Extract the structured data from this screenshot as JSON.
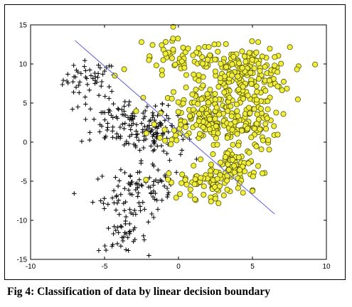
{
  "caption": "Fig 4: Classification of data by linear decision boundary",
  "colors": {
    "background": "#ffffff",
    "axes": "#000000",
    "class1_marker": "#111111",
    "class2_fill": "#f0ee3c",
    "class2_edge": "#555500",
    "boundary": "#6b6bdc"
  },
  "chart_data": {
    "type": "scatter",
    "title": "",
    "xlabel": "",
    "ylabel": "",
    "xlim": [
      -10,
      10
    ],
    "ylim": [
      -15,
      15
    ],
    "xticks": [
      -10,
      -5,
      0,
      5,
      10
    ],
    "yticks": [
      -15,
      -10,
      -5,
      0,
      5,
      10,
      15
    ],
    "xtick_labels": [
      "-10",
      "-5",
      "0",
      "5",
      "10"
    ],
    "ytick_labels": [
      "-15",
      "-10",
      "-5",
      "0",
      "5",
      "10",
      "15"
    ],
    "grid": false,
    "legend": "none",
    "series": [
      {
        "marker": "plus",
        "clusters": [
          {
            "cx": -6.0,
            "cy": 8.0,
            "sx": 0.9,
            "sy": 1.2,
            "n": 45
          },
          {
            "cx": -3.5,
            "cy": 2.5,
            "sx": 1.6,
            "sy": 1.6,
            "n": 110
          },
          {
            "cx": -1.5,
            "cy": 1.0,
            "sx": 1.0,
            "sy": 1.6,
            "n": 70
          },
          {
            "cx": -3.0,
            "cy": -7.0,
            "sx": 1.4,
            "sy": 1.8,
            "n": 80
          },
          {
            "cx": -3.8,
            "cy": -12.2,
            "sx": 0.8,
            "sy": 0.9,
            "n": 30
          },
          {
            "cx": -1.5,
            "cy": -5.0,
            "sx": 0.8,
            "sy": 1.4,
            "n": 25
          }
        ],
        "points": [
          [
            -6.9,
            9.2
          ],
          [
            -5.3,
            9.5
          ],
          [
            -4.4,
            8.6
          ],
          [
            -0.8,
            3.4
          ],
          [
            -3.9,
            -13.3
          ]
        ]
      },
      {
        "marker": "circle",
        "clusters": [
          {
            "cx": 0.3,
            "cy": 10.5,
            "sx": 1.5,
            "sy": 1.3,
            "n": 60
          },
          {
            "cx": 4.5,
            "cy": 8.5,
            "sx": 1.5,
            "sy": 1.8,
            "n": 200
          },
          {
            "cx": 1.8,
            "cy": 3.5,
            "sx": 1.6,
            "sy": 2.0,
            "n": 150
          },
          {
            "cx": 4.2,
            "cy": 2.0,
            "sx": 1.3,
            "sy": 1.6,
            "n": 90
          },
          {
            "cx": 4.0,
            "cy": -3.0,
            "sx": 0.8,
            "sy": 1.0,
            "n": 60
          },
          {
            "cx": 2.0,
            "cy": -5.2,
            "sx": 1.4,
            "sy": 1.0,
            "n": 80
          }
        ],
        "points": [
          [
            -2.5,
            12.8
          ],
          [
            -2.0,
            10.5
          ],
          [
            6.5,
            9.8
          ],
          [
            -4.3,
            8.5
          ],
          [
            -0.3,
            1.5
          ],
          [
            0.8,
            -6.8
          ]
        ]
      }
    ],
    "boundary_line": {
      "x": [
        -7.0,
        6.5
      ],
      "y": [
        13.0,
        -9.2
      ]
    }
  }
}
